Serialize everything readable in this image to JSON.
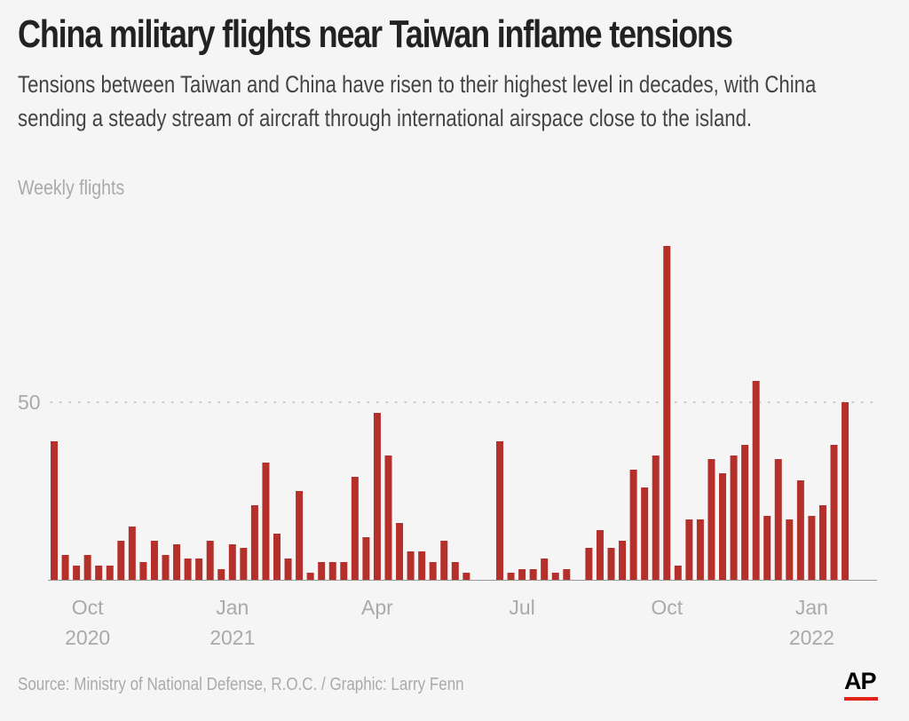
{
  "header": {
    "title": "China military flights near Taiwan inflame tensions",
    "subtitle": "Tensions between Taiwan and China have risen to their highest level in decades, with China sending a steady stream of aircraft through international airspace close to the island."
  },
  "footer": {
    "source": "Source: Ministry of National Defense, R.O.C. / Graphic: Larry Fenn",
    "logo": "AP"
  },
  "colors": {
    "bar": "#b5302a",
    "gridline": "#bbbbbb",
    "baseline": "#999999",
    "axis_text": "#aaaaaa",
    "logo_accent": "#e2231a"
  },
  "chart_data": {
    "type": "bar",
    "ylabel": "Weekly flights",
    "ylim": [
      0,
      100
    ],
    "grid": {
      "dotted_reference_line_at": 50
    },
    "y_ticks": [
      {
        "value": 50,
        "label": "50"
      }
    ],
    "x_ticks": [
      {
        "index": 3,
        "line1": "Oct",
        "line2": "2020"
      },
      {
        "index": 16,
        "line1": "Jan",
        "line2": "2021"
      },
      {
        "index": 29,
        "line1": "Apr",
        "line2": ""
      },
      {
        "index": 42,
        "line1": "Jul",
        "line2": ""
      },
      {
        "index": 55,
        "line1": "Oct",
        "line2": ""
      },
      {
        "index": 68,
        "line1": "Jan",
        "line2": "2022"
      }
    ],
    "values": [
      39,
      7,
      4,
      7,
      4,
      4,
      11,
      15,
      5,
      11,
      7,
      10,
      6,
      6,
      11,
      3,
      10,
      9,
      21,
      33,
      13,
      6,
      25,
      2,
      5,
      5,
      5,
      29,
      12,
      47,
      35,
      16,
      8,
      8,
      5,
      11,
      5,
      2,
      0,
      0,
      39,
      2,
      3,
      3,
      6,
      2,
      3,
      0,
      9,
      14,
      9,
      11,
      31,
      26,
      35,
      94,
      4,
      17,
      17,
      34,
      30,
      35,
      38,
      56,
      18,
      34,
      17,
      28,
      18,
      21,
      38,
      50
    ]
  }
}
